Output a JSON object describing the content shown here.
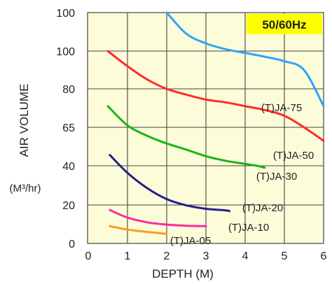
{
  "chart_data": {
    "type": "line",
    "badge": "50/60Hz",
    "xlabel": "DEPTH (M)",
    "ylabel": "AIR VOLUME",
    "yunit": "(M³/hr)",
    "xlim": [
      0,
      6
    ],
    "x_ticks": [
      "0",
      "1",
      "2",
      "3",
      "4",
      "5",
      "6"
    ],
    "y_ticks": [
      "0",
      "20",
      "40",
      "65",
      "80",
      "100",
      "100"
    ],
    "grid": true,
    "colors": {
      "background": "#fcfcd9",
      "badge": "#ffff00",
      "grid": "#444444"
    },
    "series": [
      {
        "name": "(T)JA-75",
        "color": "#2ea3ff",
        "points": [
          [
            2.0,
            6.0
          ],
          [
            2.5,
            5.45
          ],
          [
            3.0,
            5.2
          ],
          [
            3.5,
            5.05
          ],
          [
            4.0,
            4.95
          ],
          [
            4.5,
            4.85
          ],
          [
            5.0,
            4.73
          ],
          [
            5.5,
            4.5
          ],
          [
            6.0,
            3.55
          ]
        ]
      },
      {
        "name": "(T)JA-50",
        "color": "#ff2a2a",
        "points": [
          [
            0.5,
            5.0
          ],
          [
            1.0,
            4.6
          ],
          [
            1.5,
            4.25
          ],
          [
            2.0,
            4.0
          ],
          [
            2.5,
            3.85
          ],
          [
            3.0,
            3.72
          ],
          [
            3.5,
            3.65
          ],
          [
            4.0,
            3.55
          ],
          [
            4.5,
            3.45
          ],
          [
            5.0,
            3.3
          ],
          [
            5.5,
            3.0
          ],
          [
            6.0,
            2.65
          ]
        ]
      },
      {
        "name": "(T)JA-30",
        "color": "#19b419",
        "points": [
          [
            0.5,
            3.55
          ],
          [
            1.0,
            3.05
          ],
          [
            1.5,
            2.78
          ],
          [
            2.0,
            2.58
          ],
          [
            2.5,
            2.42
          ],
          [
            3.0,
            2.25
          ],
          [
            3.5,
            2.13
          ],
          [
            4.0,
            2.05
          ],
          [
            4.3,
            2.0
          ],
          [
            4.5,
            1.95
          ]
        ]
      },
      {
        "name": "(T)JA-20",
        "color": "#22208a",
        "points": [
          [
            0.55,
            2.28
          ],
          [
            1.0,
            1.82
          ],
          [
            1.5,
            1.43
          ],
          [
            2.0,
            1.15
          ],
          [
            2.5,
            0.99
          ],
          [
            3.0,
            0.9
          ],
          [
            3.5,
            0.86
          ],
          [
            3.6,
            0.84
          ]
        ]
      },
      {
        "name": "(T)JA-10",
        "color": "#ff2a9f",
        "points": [
          [
            0.55,
            0.87
          ],
          [
            1.0,
            0.67
          ],
          [
            1.5,
            0.55
          ],
          [
            2.0,
            0.49
          ],
          [
            2.5,
            0.46
          ],
          [
            3.0,
            0.45
          ]
        ]
      },
      {
        "name": "(T)JA-05",
        "color": "#ff9a1e",
        "points": [
          [
            0.55,
            0.45
          ],
          [
            1.0,
            0.36
          ],
          [
            1.5,
            0.3
          ],
          [
            2.0,
            0.25
          ]
        ]
      }
    ]
  }
}
